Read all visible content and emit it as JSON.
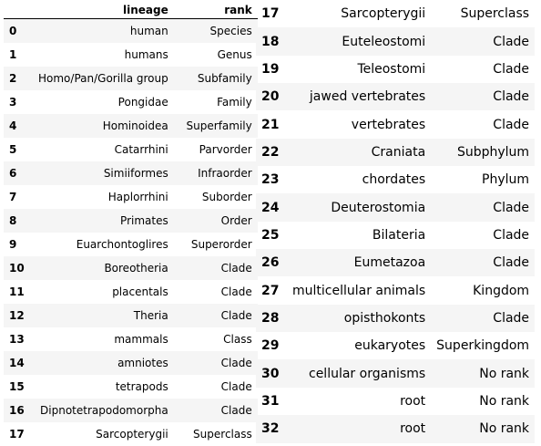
{
  "left_table": {
    "headers": {
      "index": "",
      "lineage": "lineage",
      "rank": "rank"
    },
    "rows": [
      {
        "index": "0",
        "lineage": "human",
        "rank": "Species"
      },
      {
        "index": "1",
        "lineage": "humans",
        "rank": "Genus"
      },
      {
        "index": "2",
        "lineage": "Homo/Pan/Gorilla group",
        "rank": "Subfamily"
      },
      {
        "index": "3",
        "lineage": "Pongidae",
        "rank": "Family"
      },
      {
        "index": "4",
        "lineage": "Hominoidea",
        "rank": "Superfamily"
      },
      {
        "index": "5",
        "lineage": "Catarrhini",
        "rank": "Parvorder"
      },
      {
        "index": "6",
        "lineage": "Simiiformes",
        "rank": "Infraorder"
      },
      {
        "index": "7",
        "lineage": "Haplorrhini",
        "rank": "Suborder"
      },
      {
        "index": "8",
        "lineage": "Primates",
        "rank": "Order"
      },
      {
        "index": "9",
        "lineage": "Euarchontoglires",
        "rank": "Superorder"
      },
      {
        "index": "10",
        "lineage": "Boreotheria",
        "rank": "Clade"
      },
      {
        "index": "11",
        "lineage": "placentals",
        "rank": "Clade"
      },
      {
        "index": "12",
        "lineage": "Theria",
        "rank": "Clade"
      },
      {
        "index": "13",
        "lineage": "mammals",
        "rank": "Class"
      },
      {
        "index": "14",
        "lineage": "amniotes",
        "rank": "Clade"
      },
      {
        "index": "15",
        "lineage": "tetrapods",
        "rank": "Clade"
      },
      {
        "index": "16",
        "lineage": "Dipnotetrapodomorpha",
        "rank": "Clade"
      },
      {
        "index": "17",
        "lineage": "Sarcopterygii",
        "rank": "Superclass"
      }
    ]
  },
  "right_table": {
    "rows": [
      {
        "index": "17",
        "lineage": "Sarcopterygii",
        "rank": "Superclass"
      },
      {
        "index": "18",
        "lineage": "Euteleostomi",
        "rank": "Clade"
      },
      {
        "index": "19",
        "lineage": "Teleostomi",
        "rank": "Clade"
      },
      {
        "index": "20",
        "lineage": "jawed vertebrates",
        "rank": "Clade"
      },
      {
        "index": "21",
        "lineage": "vertebrates",
        "rank": "Clade"
      },
      {
        "index": "22",
        "lineage": "Craniata",
        "rank": "Subphylum"
      },
      {
        "index": "23",
        "lineage": "chordates",
        "rank": "Phylum"
      },
      {
        "index": "24",
        "lineage": "Deuterostomia",
        "rank": "Clade"
      },
      {
        "index": "25",
        "lineage": "Bilateria",
        "rank": "Clade"
      },
      {
        "index": "26",
        "lineage": "Eumetazoa",
        "rank": "Clade"
      },
      {
        "index": "27",
        "lineage": "multicellular animals",
        "rank": "Kingdom"
      },
      {
        "index": "28",
        "lineage": "opisthokonts",
        "rank": "Clade"
      },
      {
        "index": "29",
        "lineage": "eukaryotes",
        "rank": "Superkingdom"
      },
      {
        "index": "30",
        "lineage": "cellular organisms",
        "rank": "No rank"
      },
      {
        "index": "31",
        "lineage": "root",
        "rank": "No rank"
      },
      {
        "index": "32",
        "lineage": "root",
        "rank": "No rank"
      }
    ]
  },
  "colors": {
    "stripe": "#f5f5f5",
    "text": "#000000",
    "background": "#ffffff"
  }
}
